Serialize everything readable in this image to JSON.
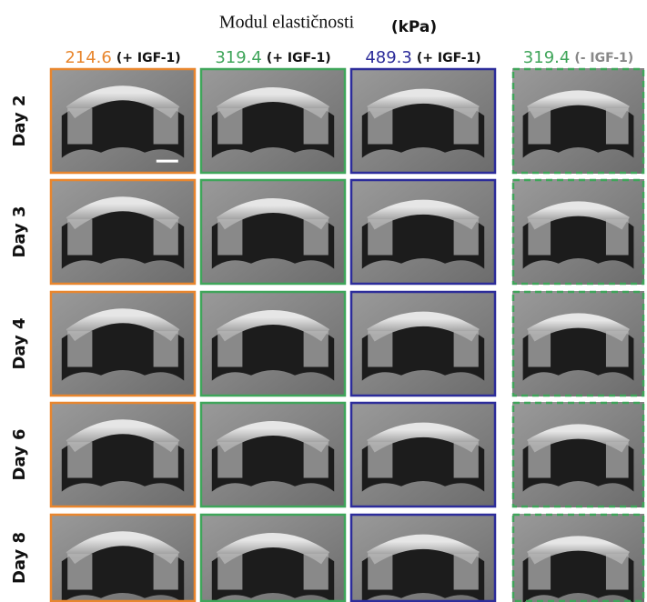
{
  "title": {
    "text": "Modul elastičnosti",
    "unit": "(kPa)"
  },
  "columns": [
    {
      "modulus": 214.6,
      "condition": "(+ IGF-1)",
      "color": "#e8862e",
      "border": "solid"
    },
    {
      "modulus": 319.4,
      "condition": "(+ IGF-1)",
      "color": "#3fa55a",
      "border": "solid"
    },
    {
      "modulus": 489.3,
      "condition": "(+ IGF-1)",
      "color": "#2c2c9a",
      "border": "solid"
    },
    {
      "modulus": 319.4,
      "condition": "(- IGF-1)",
      "color": "#3fa55a",
      "border": "dashed"
    }
  ],
  "rows": [
    "Day 2",
    "Day 3",
    "Day 4",
    "Day 6",
    "Day 8"
  ]
}
